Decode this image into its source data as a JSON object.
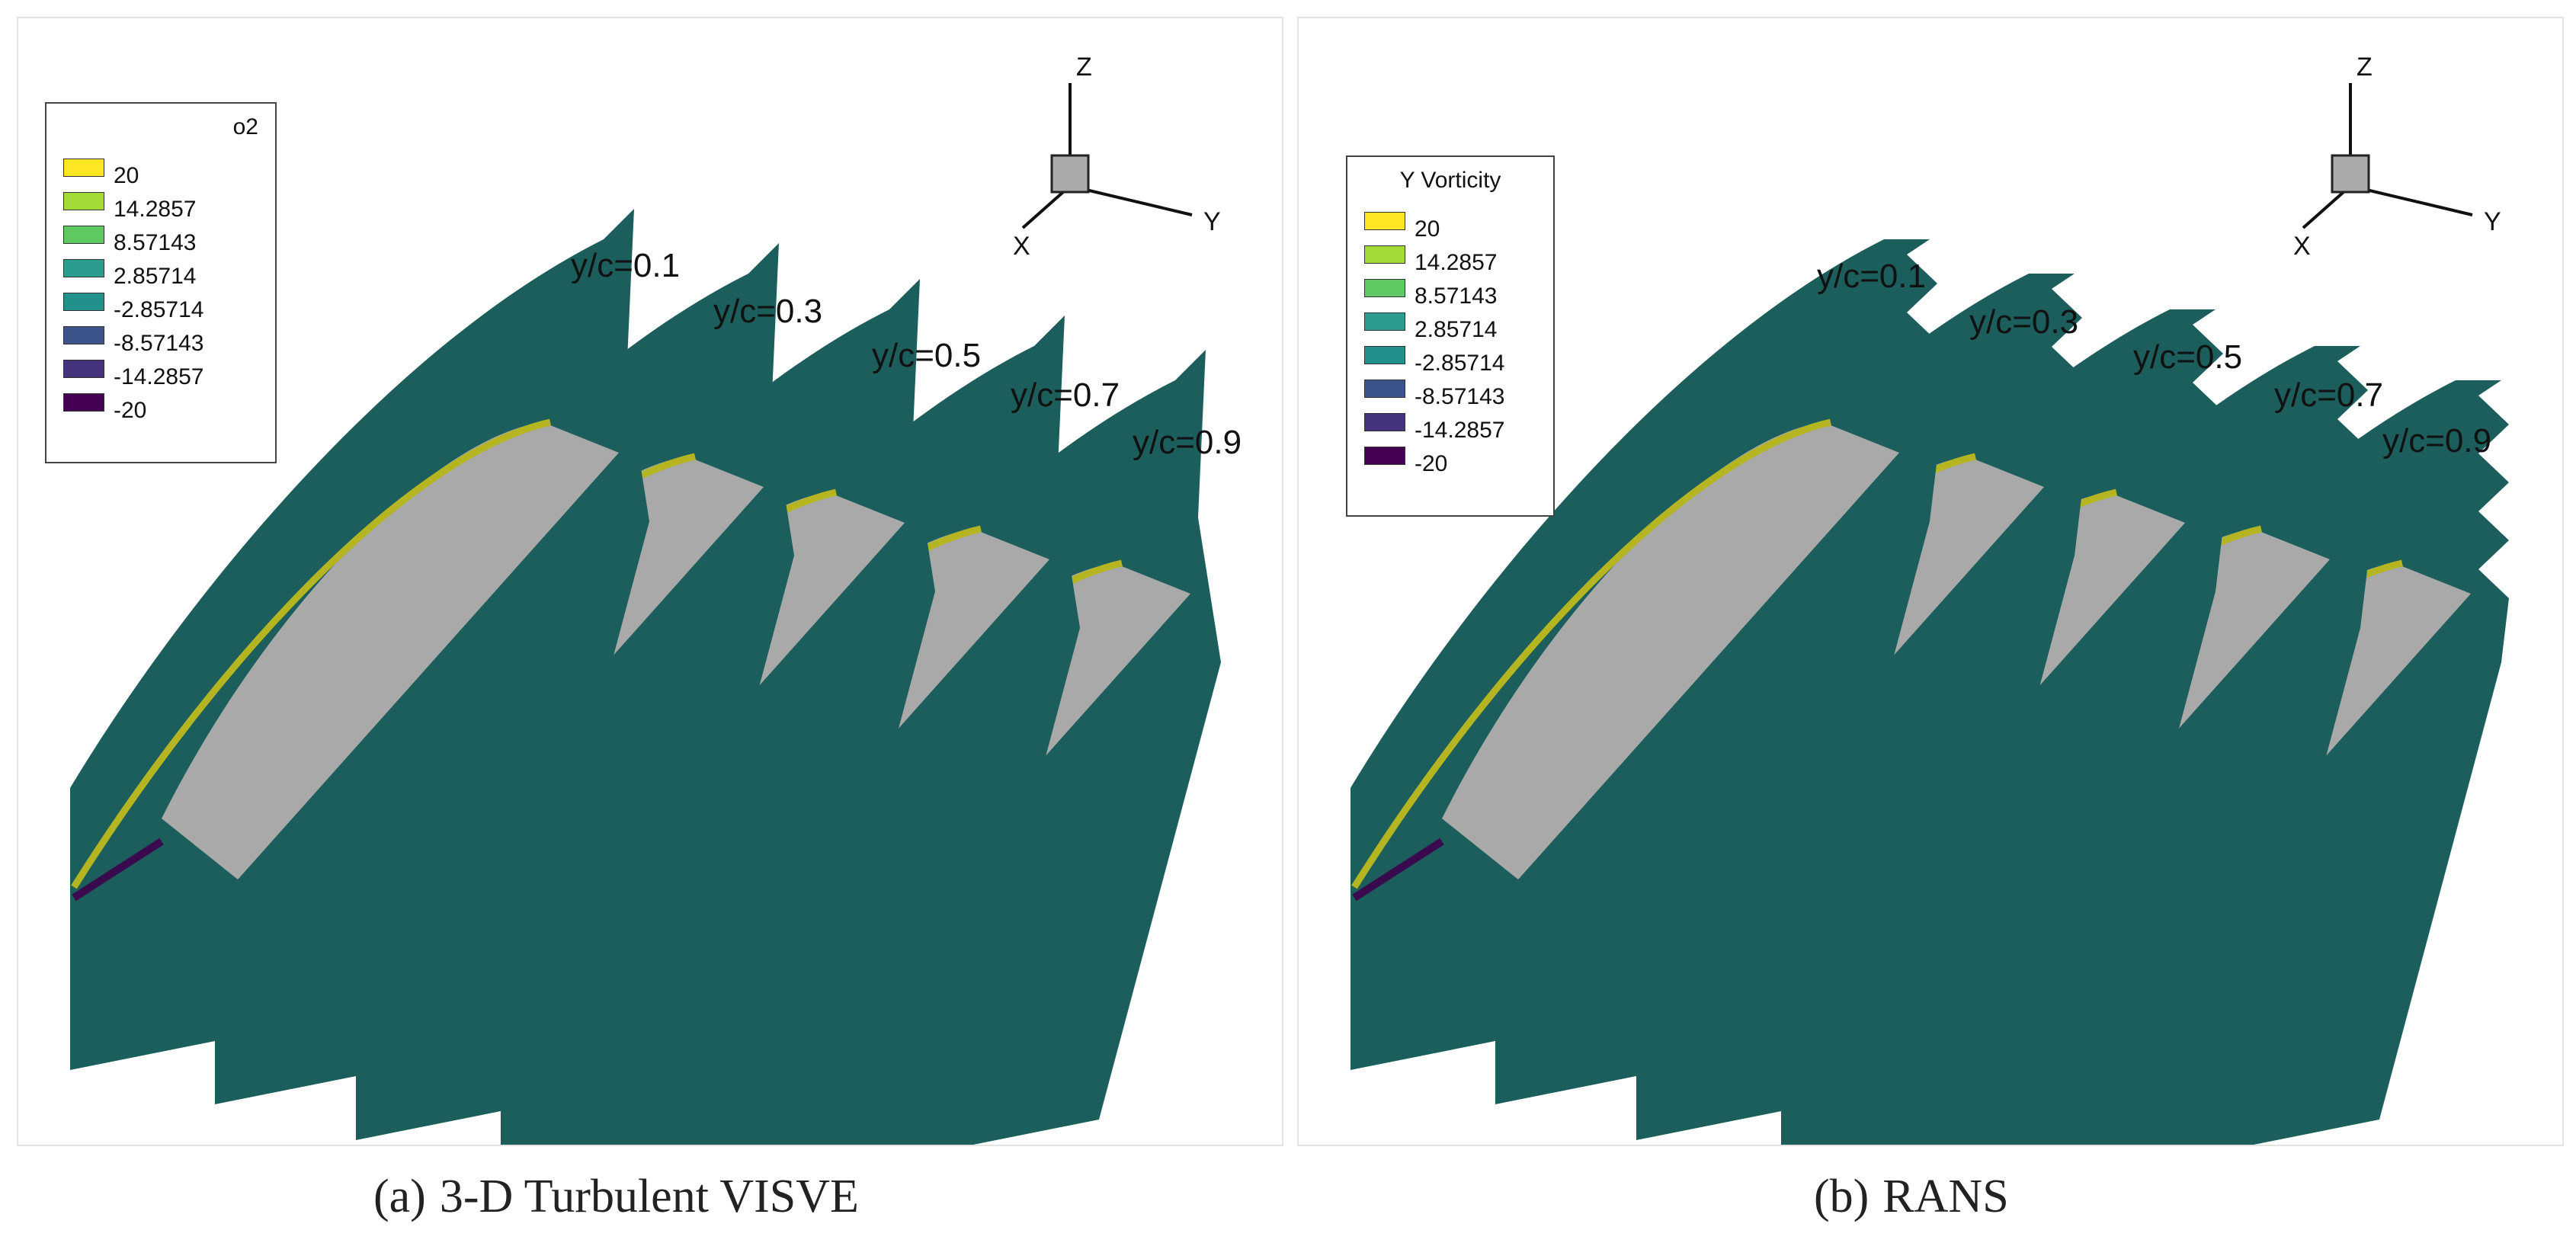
{
  "panels": [
    {
      "id": "a",
      "caption_label": "(a)",
      "caption_text": "3-D Turbulent VISVE",
      "legend_title": "o2",
      "slice_labels": [
        "y/c=0.1",
        "y/c=0.3",
        "y/c=0.5",
        "y/c=0.7",
        "y/c=0.9"
      ]
    },
    {
      "id": "b",
      "caption_label": "(b)",
      "caption_text": "RANS",
      "legend_title": "Y Vorticity",
      "slice_labels": [
        "y/c=0.1",
        "y/c=0.3",
        "y/c=0.5",
        "y/c=0.7",
        "y/c=0.9"
      ]
    }
  ],
  "legend_levels": [
    "20",
    "14.2857",
    "8.57143",
    "2.85714",
    "-2.85714",
    "-8.57143",
    "-14.2857",
    "-20"
  ],
  "legend_colors": [
    "#fde725",
    "#a5db36",
    "#5ec962",
    "#2a9d8f",
    "#21918c",
    "#3b528b",
    "#46337e",
    "#440154"
  ],
  "axes": {
    "z": "Z",
    "x": "X",
    "y": "Y"
  },
  "colors": {
    "slice": "#1b5e5c",
    "blade": "#a9a9a9",
    "edge_yellow": "#b5b522",
    "edge_purple": "#3a0a4e"
  }
}
